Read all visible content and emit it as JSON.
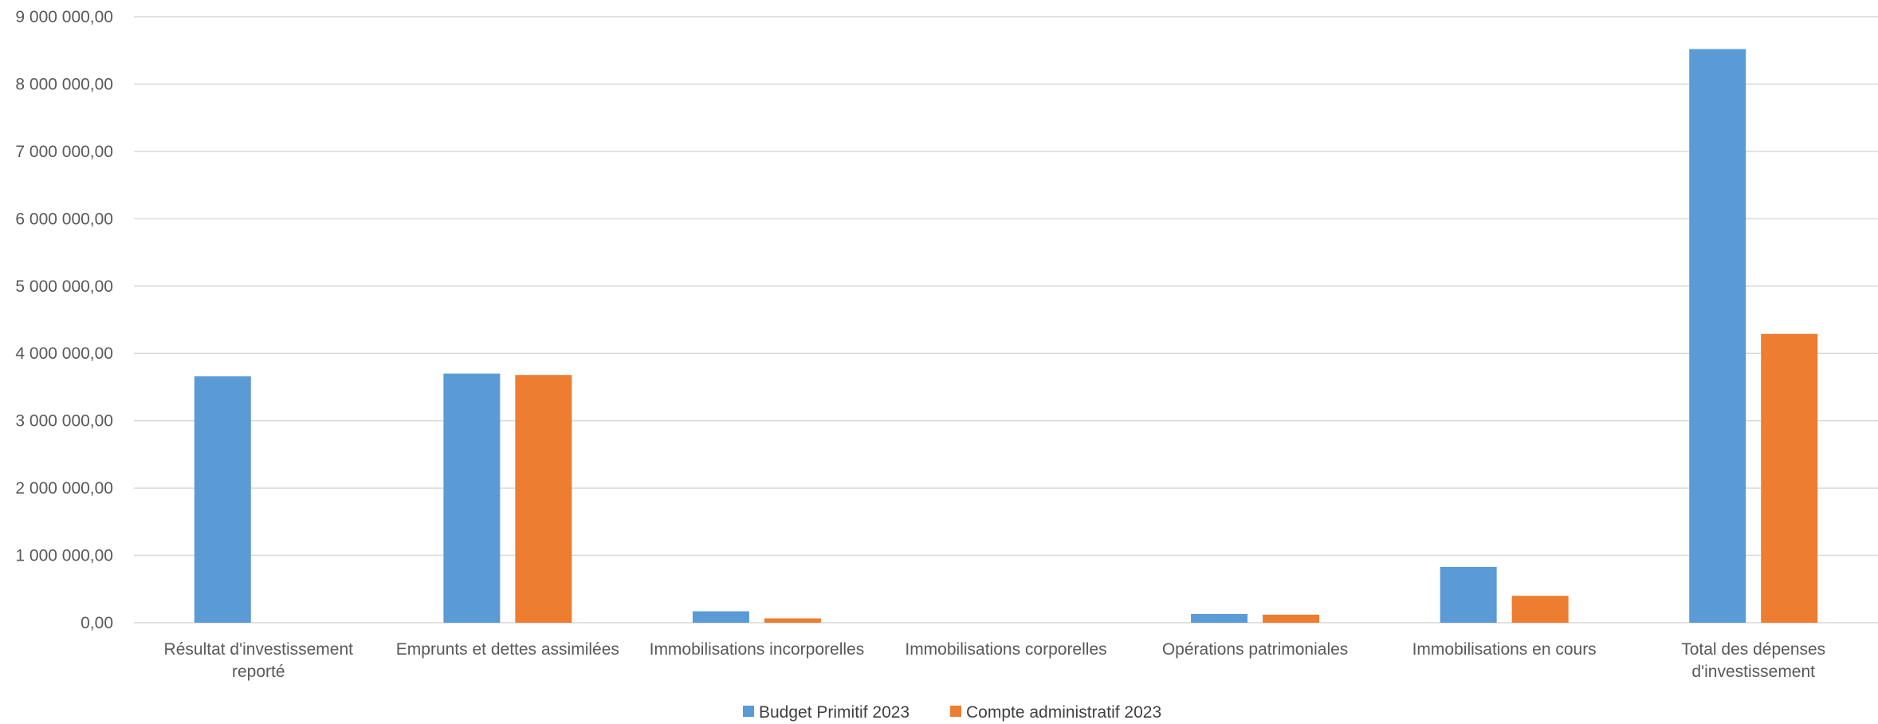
{
  "colors": {
    "series_1": "#5b9bd5",
    "series_2": "#ed7d31",
    "grid": "#d9d9d9",
    "text": "#595959"
  },
  "chart_data": {
    "type": "bar",
    "categories": [
      "Résultat d'investissement reporté",
      "Emprunts et dettes assimilées",
      "Immobilisations incorporelles",
      "Immobilisations corporelles",
      "Opérations patrimoniales",
      "Immobilisations en cours",
      "Total des dépenses d'investissement"
    ],
    "category_lines": [
      [
        "Résultat d'investissement",
        "reporté"
      ],
      [
        "Emprunts et dettes assimilées"
      ],
      [
        "Immobilisations incorporelles"
      ],
      [
        "Immobilisations corporelles"
      ],
      [
        "Opérations patrimoniales"
      ],
      [
        "Immobilisations en cours"
      ],
      [
        "Total des dépenses",
        "d'investissement"
      ]
    ],
    "series": [
      {
        "name": "Budget Primitif 2023",
        "values": [
          3660000,
          3700000,
          170000,
          0,
          130000,
          830000,
          8520000
        ]
      },
      {
        "name": "Compte administratif 2023",
        "values": [
          0,
          3680000,
          65000,
          0,
          120000,
          400000,
          4290000
        ]
      }
    ],
    "ylim": [
      0,
      9000000
    ],
    "yticks": [
      0,
      1000000,
      2000000,
      3000000,
      4000000,
      5000000,
      6000000,
      7000000,
      8000000,
      9000000
    ],
    "ytick_labels": [
      "0,00",
      "1 000 000,00",
      "2 000 000,00",
      "3 000 000,00",
      "4 000 000,00",
      "5 000 000,00",
      "6 000 000,00",
      "7 000 000,00",
      "8 000 000,00",
      "9 000 000,00"
    ],
    "grid": true,
    "legend_position": "bottom"
  }
}
